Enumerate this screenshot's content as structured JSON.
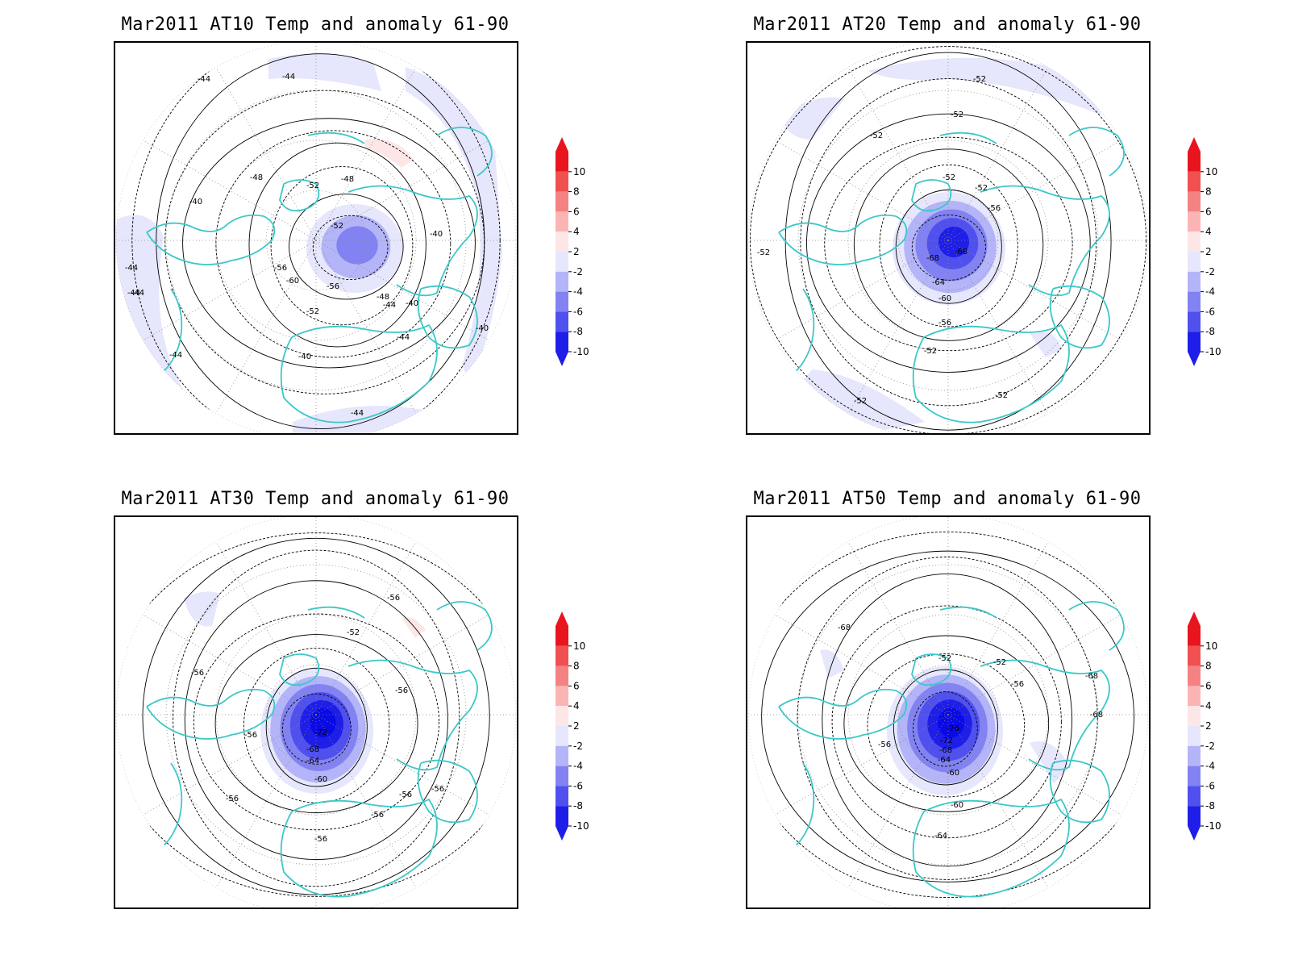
{
  "panels": [
    {
      "id": "at10",
      "title": "Mar2011 AT10 Temp and anomaly 61-90",
      "contour_labels": [
        "-44",
        "-44",
        "-48",
        "-52",
        "-48",
        "-40",
        "-52",
        "-40",
        "-44",
        "-56",
        "-60",
        "-56",
        "-52",
        "-48",
        "-44",
        "-40",
        "-44",
        "-40",
        "-40",
        "-44",
        "-44",
        "-44",
        "-44"
      ]
    },
    {
      "id": "at20",
      "title": "Mar2011 AT20 Temp and anomaly 61-90",
      "contour_labels": [
        "-52",
        "-52",
        "-52",
        "-52",
        "-52",
        "-56",
        "-68",
        "-68",
        "-64",
        "-60",
        "-56",
        "-52",
        "-52",
        "-52",
        "-52"
      ]
    },
    {
      "id": "at30",
      "title": "Mar2011 AT30 Temp and anomaly 61-90",
      "contour_labels": [
        "-56",
        "-52",
        "-56",
        "-56",
        "-56",
        "-72",
        "-68",
        "-64",
        "-60",
        "-56",
        "-56",
        "-56",
        "-56",
        "-56"
      ]
    },
    {
      "id": "at50",
      "title": "Mar2011 AT50 Temp and anomaly 61-90",
      "contour_labels": [
        "-68",
        "-52",
        "-52",
        "-56",
        "-68",
        "-68",
        "-56",
        "-76",
        "-72",
        "-68",
        "-64",
        "-60",
        "-60",
        "-64"
      ]
    }
  ],
  "colorbar": {
    "ticks": [
      "10",
      "8",
      "6",
      "4",
      "2",
      "-2",
      "-4",
      "-6",
      "-8",
      "-10"
    ],
    "colors": [
      "#e8141e",
      "#f05050",
      "#f58282",
      "#fbb4b4",
      "#fde6e6",
      "#ffffff",
      "#e6e6fc",
      "#b4b4f8",
      "#8282f2",
      "#5050ee",
      "#1e1ee8"
    ]
  },
  "colors": {
    "coastline": "#3cc8c8",
    "contour": "#000000",
    "grid": "#888888",
    "anomaly_max": "#0a0ae6"
  }
}
